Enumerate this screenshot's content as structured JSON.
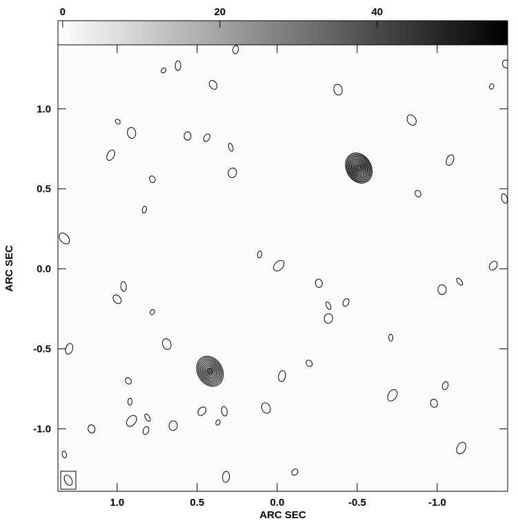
{
  "chart_data": {
    "type": "contour",
    "xlabel": "ARC SEC",
    "ylabel": "ARC SEC",
    "xlim": [
      1.37,
      -1.44
    ],
    "ylim": [
      -1.39,
      1.4
    ],
    "xticks": [
      {
        "value": 1,
        "label": "1.0"
      },
      0.5,
      {
        "value": 0,
        "label": "0.0"
      },
      -0.5,
      {
        "value": -1,
        "label": "-1.0"
      }
    ],
    "yticks": [
      {
        "value": 1,
        "label": "1.0"
      },
      0.5,
      {
        "value": 0,
        "label": "0.0"
      },
      -0.5,
      {
        "value": -1,
        "label": "-1.0"
      }
    ],
    "colorbar": {
      "lim": [
        -0.6,
        56.6
      ],
      "ticks": [
        0,
        20,
        40
      ],
      "colors": [
        "#ffffff",
        "#000000"
      ]
    },
    "sources": [
      {
        "x": -0.51,
        "y": 0.63,
        "rings": 12
      },
      {
        "x": 0.42,
        "y": -0.64,
        "rings": 10
      }
    ],
    "blobs": [
      {
        "x": 0.996,
        "y": 0.92
      },
      {
        "x": 0.91,
        "y": 0.85
      },
      {
        "x": 1.04,
        "y": 0.71
      },
      {
        "x": 0.78,
        "y": 0.56
      },
      {
        "x": 0.83,
        "y": 0.37
      },
      {
        "x": 1.33,
        "y": 0.19
      },
      {
        "x": 0.56,
        "y": 0.83
      },
      {
        "x": 0.44,
        "y": 0.82
      },
      {
        "x": 0.29,
        "y": 0.76
      },
      {
        "x": 0.28,
        "y": 0.6
      },
      {
        "x": 0.4,
        "y": 1.15
      },
      {
        "x": 0.62,
        "y": 1.27
      },
      {
        "x": 0.71,
        "y": 1.24
      },
      {
        "x": -0.38,
        "y": 1.12
      },
      {
        "x": -1.08,
        "y": 0.68
      },
      {
        "x": -0.88,
        "y": 0.47
      },
      {
        "x": 0.11,
        "y": 0.09
      },
      {
        "x": -0.01,
        "y": 0.02
      },
      {
        "x": -0.26,
        "y": -0.09
      },
      {
        "x": -0.43,
        "y": -0.21
      },
      {
        "x": -0.32,
        "y": -0.23
      },
      {
        "x": -0.32,
        "y": -0.31
      },
      {
        "x": 1.0,
        "y": -0.19
      },
      {
        "x": 0.96,
        "y": -0.11
      },
      {
        "x": 0.78,
        "y": -0.27
      },
      {
        "x": 0.69,
        "y": -0.47
      },
      {
        "x": 1.3,
        "y": -0.5
      },
      {
        "x": 0.93,
        "y": -0.7
      },
      {
        "x": 0.92,
        "y": -0.83
      },
      {
        "x": 0.91,
        "y": -0.95
      },
      {
        "x": 1.16,
        "y": -1.0
      },
      {
        "x": 0.82,
        "y": -1.01
      },
      {
        "x": 0.81,
        "y": -0.93
      },
      {
        "x": 0.65,
        "y": -0.98
      },
      {
        "x": 0.47,
        "y": -0.89
      },
      {
        "x": 0.33,
        "y": -0.89
      },
      {
        "x": 0.37,
        "y": -0.96
      },
      {
        "x": 0.07,
        "y": -0.87
      },
      {
        "x": -0.03,
        "y": -0.67
      },
      {
        "x": -0.2,
        "y": -0.59
      },
      {
        "x": -0.71,
        "y": -0.43
      },
      {
        "x": -0.72,
        "y": -0.79
      },
      {
        "x": -0.98,
        "y": -0.84
      },
      {
        "x": -1.05,
        "y": -0.73
      },
      {
        "x": -1.14,
        "y": -0.08
      },
      {
        "x": -1.03,
        "y": -0.13
      },
      {
        "x": -1.35,
        "y": 0.02
      },
      {
        "x": -1.42,
        "y": 0.44
      },
      {
        "x": -1.34,
        "y": 1.14
      },
      {
        "x": -0.84,
        "y": 0.93
      },
      {
        "x": 0.32,
        "y": -1.3
      },
      {
        "x": -0.11,
        "y": -1.27
      },
      {
        "x": 1.33,
        "y": -1.16
      },
      {
        "x": -1.15,
        "y": -1.12
      },
      {
        "x": -1.43,
        "y": 1.28
      },
      {
        "x": 0.26,
        "y": 1.37
      }
    ]
  }
}
